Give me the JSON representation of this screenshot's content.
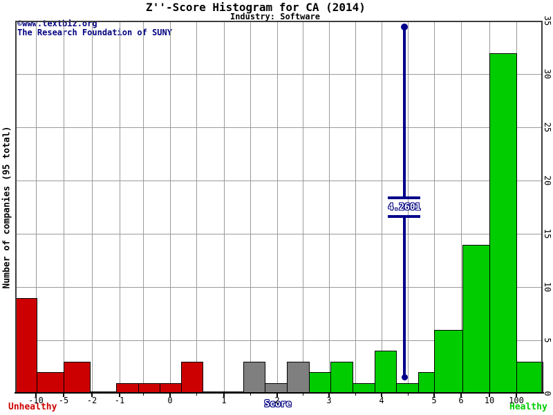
{
  "title": "Z''-Score Histogram for CA (2014)",
  "subtitle": "Industry: Software",
  "watermark": {
    "line1": "©www.textbiz.org",
    "line2": "The Research Foundation of SUNY"
  },
  "axes": {
    "y_label": "Number of companies (95 total)",
    "y_ticks": [
      "0",
      "5",
      "10",
      "15",
      "20",
      "25",
      "30",
      "35"
    ],
    "x_label": "Score",
    "x_ticks": [
      "-10",
      "-5",
      "-2",
      "-1",
      "0",
      "1",
      "2",
      "3",
      "4",
      "5",
      "6",
      "10",
      "100"
    ],
    "unhealthy_label": "Unhealthy",
    "healthy_label": "Healthy"
  },
  "marker": {
    "label": "4.2601"
  },
  "colors": {
    "unhealthy": "#cc0000",
    "grey_zone": "#7f7f7f",
    "healthy": "#00cc00",
    "marker": "#00008b",
    "accent_text": "#000080"
  },
  "chart_data": {
    "type": "bar",
    "title": "Z''-Score Histogram for CA (2014)",
    "subtitle": "Industry: Software",
    "xlabel": "Score",
    "ylabel": "Number of companies (95 total)",
    "ylim": [
      0,
      35
    ],
    "grid": true,
    "total_companies": 95,
    "marker_value": 4.2601,
    "bins": [
      {
        "range": "< -10",
        "count": 9,
        "zone": "unhealthy"
      },
      {
        "range": "-10 to -5",
        "count": 2,
        "zone": "unhealthy"
      },
      {
        "range": "-5 to -2",
        "count": 3,
        "zone": "unhealthy"
      },
      {
        "range": "-2 to -1",
        "count": 0,
        "zone": "unhealthy"
      },
      {
        "range": "-1 to -0.6",
        "count": 1,
        "zone": "unhealthy"
      },
      {
        "range": "-0.6 to -0.2",
        "count": 1,
        "zone": "unhealthy"
      },
      {
        "range": "-0.2 to 0.2",
        "count": 1,
        "zone": "unhealthy"
      },
      {
        "range": "0.2 to 0.6",
        "count": 3,
        "zone": "unhealthy"
      },
      {
        "range": "0.6 to 1.4",
        "count": 0,
        "zone": "unhealthy"
      },
      {
        "range": "1.4 to 1.8",
        "count": 3,
        "zone": "grey"
      },
      {
        "range": "1.8 to 2.2",
        "count": 1,
        "zone": "grey"
      },
      {
        "range": "2.2 to 2.6",
        "count": 3,
        "zone": "grey"
      },
      {
        "range": "2.6 to 3.0",
        "count": 2,
        "zone": "healthy"
      },
      {
        "range": "3.0 to 3.4",
        "count": 3,
        "zone": "healthy"
      },
      {
        "range": "3.4 to 3.8",
        "count": 1,
        "zone": "healthy"
      },
      {
        "range": "3.8 to 4.2",
        "count": 4,
        "zone": "healthy"
      },
      {
        "range": "4.2 to 4.6",
        "count": 1,
        "zone": "healthy"
      },
      {
        "range": "4.6 to 5",
        "count": 2,
        "zone": "healthy"
      },
      {
        "range": "5 to 6",
        "count": 6,
        "zone": "healthy"
      },
      {
        "range": "6 to 10",
        "count": 14,
        "zone": "healthy"
      },
      {
        "range": "10 to 100",
        "count": 32,
        "zone": "healthy"
      },
      {
        "range": "> 100",
        "count": 3,
        "zone": "healthy"
      }
    ]
  }
}
